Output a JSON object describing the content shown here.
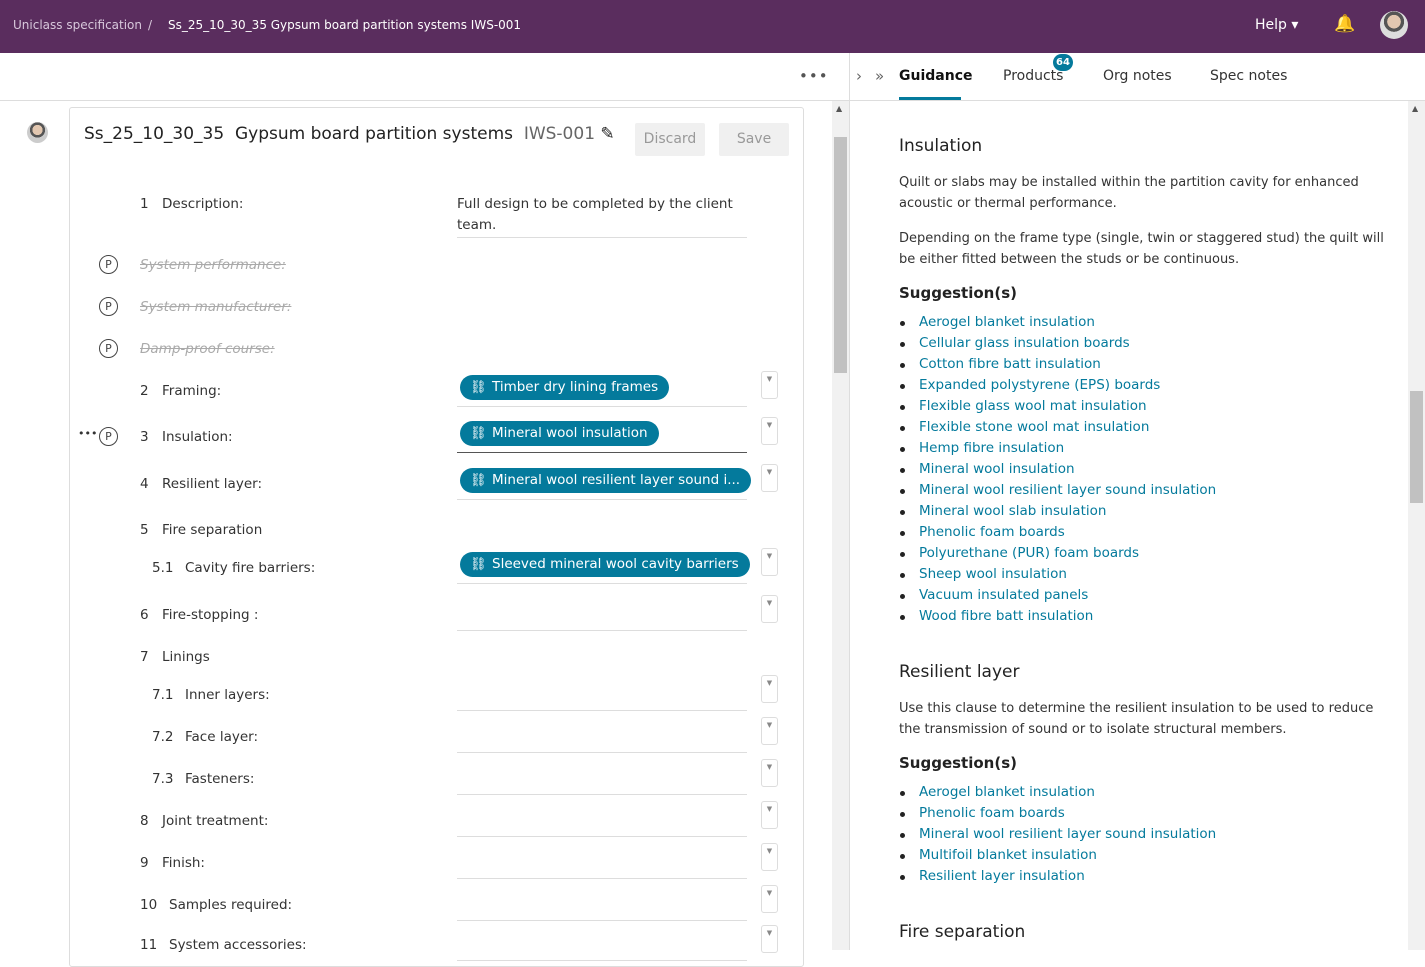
{
  "topbar": {
    "breadcrumb_root": "Uniclass specification",
    "breadcrumb_sep": "/",
    "breadcrumb_current": "Ss_25_10_30_35 Gypsum board partition systems IWS-001",
    "help": "Help ▾",
    "bell": "🔔"
  },
  "editor": {
    "more": "•••",
    "code": "Ss_25_10_30_35",
    "name": "Gypsum board partition systems",
    "ref": "IWS-001",
    "edit_icon": "✎",
    "discard": "Discard",
    "save": "Save",
    "description_num": "1",
    "description_label": "Description:",
    "description_value": "Full design to be completed by the client team.",
    "struck": [
      "System performance:",
      "System manufacturer:",
      "Damp-proof course:"
    ],
    "p_icon": "P",
    "rows": [
      {
        "num": "2",
        "label": "Framing:",
        "chip": "Timber dry lining frames"
      },
      {
        "num": "3",
        "label": "Insulation:",
        "chip": "Mineral wool insulation"
      },
      {
        "num": "4",
        "label": "Resilient layer:",
        "chip": "Mineral wool resilient layer sound i..."
      },
      {
        "num": "5",
        "label": "Fire separation"
      },
      {
        "num": "5.1",
        "label": "Cavity fire barriers:",
        "chip": "Sleeved mineral wool cavity barriers"
      },
      {
        "num": "6",
        "label": "Fire-stopping :"
      },
      {
        "num": "7",
        "label": "Linings"
      },
      {
        "num": "7.1",
        "label": "Inner layers:"
      },
      {
        "num": "7.2",
        "label": "Face layer:"
      },
      {
        "num": "7.3",
        "label": "Fasteners:"
      },
      {
        "num": "8",
        "label": "Joint treatment:"
      },
      {
        "num": "9",
        "label": "Finish:"
      },
      {
        "num": "10",
        "label": "Samples required:"
      },
      {
        "num": "11",
        "label": "System accessories:"
      }
    ],
    "row_more": "•••"
  },
  "tabs": {
    "items": [
      "Guidance",
      "Products",
      "Org notes",
      "Spec notes"
    ],
    "active": "Guidance",
    "products_badge": "64"
  },
  "guidance": {
    "sections": [
      {
        "title": "Insulation",
        "paragraphs": [
          "Quilt or slabs may be installed within the partition cavity for enhanced acoustic or thermal performance.",
          "Depending on the frame type (single, twin or staggered stud) the quilt will be either fitted between the studs or be continuous."
        ],
        "suggestions_title": "Suggestion(s)",
        "suggestions": [
          "Aerogel blanket insulation",
          "Cellular glass insulation boards",
          "Cotton fibre batt insulation",
          "Expanded polystyrene (EPS) boards",
          "Flexible glass wool mat insulation",
          "Flexible stone wool mat insulation",
          "Hemp fibre insulation",
          "Mineral wool insulation",
          "Mineral wool resilient layer sound insulation",
          "Mineral wool slab insulation",
          "Phenolic foam boards",
          "Polyurethane (PUR) foam boards",
          "Sheep wool insulation",
          "Vacuum insulated panels",
          "Wood fibre batt insulation"
        ]
      },
      {
        "title": "Resilient layer",
        "paragraphs": [
          "Use this clause to determine the resilient insulation to be used to reduce the transmission of sound or to isolate structural members."
        ],
        "suggestions_title": "Suggestion(s)",
        "suggestions": [
          "Aerogel blanket insulation",
          "Phenolic foam boards",
          "Mineral wool resilient layer sound insulation",
          "Multifoil blanket insulation",
          "Resilient layer insulation"
        ]
      },
      {
        "title": "Fire separation"
      }
    ]
  },
  "colors": {
    "brand": "#5a2d5e",
    "accent": "#047a9c"
  }
}
